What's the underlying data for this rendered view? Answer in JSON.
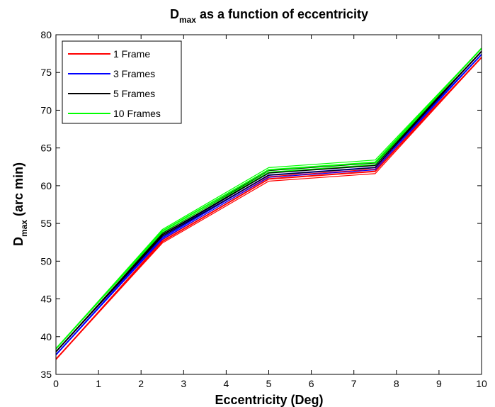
{
  "chart_data": {
    "type": "line",
    "title": {
      "main": "D",
      "sub": "max",
      "rest": " as a function of eccentricity"
    },
    "xlabel": "Eccentricity (Deg)",
    "ylabel": {
      "main": "D",
      "sub": "max",
      "rest": " (arc min)"
    },
    "xlim": [
      0,
      10
    ],
    "ylim": [
      35,
      80
    ],
    "xticks": [
      0,
      1,
      2,
      3,
      4,
      5,
      6,
      7,
      8,
      9,
      10
    ],
    "yticks": [
      35,
      40,
      45,
      50,
      55,
      60,
      65,
      70,
      75,
      80
    ],
    "grid": false,
    "legend_position": "top-left",
    "series": [
      {
        "name": "1 Frame",
        "color": "#ff0000",
        "x": [
          0,
          2.5,
          5,
          7.5,
          10
        ],
        "y": [
          37.0,
          52.6,
          60.9,
          61.9,
          77.0
        ],
        "band": [
          0.0,
          0.2,
          0.3,
          0.3,
          0.0
        ]
      },
      {
        "name": "3 Frames",
        "color": "#0000ff",
        "x": [
          0,
          2.5,
          5,
          7.5,
          10
        ],
        "y": [
          37.6,
          53.1,
          61.4,
          62.4,
          77.4
        ],
        "band": [
          0.0,
          0.2,
          0.3,
          0.3,
          0.0
        ]
      },
      {
        "name": "5 Frames",
        "color": "#000000",
        "x": [
          0,
          2.5,
          5,
          7.5,
          10
        ],
        "y": [
          38.0,
          53.5,
          61.7,
          62.7,
          77.8
        ],
        "band": [
          0.0,
          0.2,
          0.3,
          0.3,
          0.0
        ]
      },
      {
        "name": "10 Frames",
        "color": "#00ff00",
        "x": [
          0,
          2.5,
          5,
          7.5,
          10
        ],
        "y": [
          38.4,
          54.0,
          62.1,
          63.1,
          78.2
        ],
        "band": [
          0.0,
          0.2,
          0.3,
          0.3,
          0.0
        ]
      }
    ]
  }
}
